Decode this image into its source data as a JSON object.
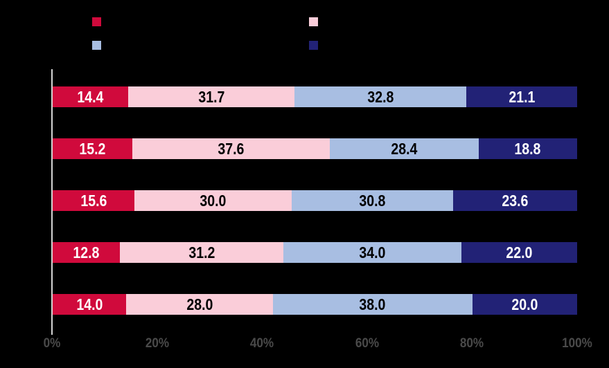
{
  "app": {
    "background_color": "#000000"
  },
  "legend": {
    "position": "top",
    "swatch_series_order": [
      "crimson",
      "pink",
      "light-blue",
      "navy"
    ]
  },
  "axis": {
    "line_color": "#D4D4D4",
    "tick_label_color": "#4A4A4A"
  },
  "chart_data": {
    "type": "bar",
    "orientation": "horizontal",
    "stacked": true,
    "unit": "percent",
    "grid": false,
    "legend_position": "top",
    "x_ticks": [
      "0%",
      "20%",
      "40%",
      "60%",
      "80%",
      "100%"
    ],
    "xlim": [
      0,
      100
    ],
    "rows": 5,
    "series": [
      {
        "name": "crimson",
        "color": "#D00A3C",
        "label_color": "#FFFFFF",
        "values": [
          14.4,
          15.2,
          15.6,
          12.8,
          14.0
        ]
      },
      {
        "name": "pink",
        "color": "#FACDD9",
        "label_color": "#000000",
        "values": [
          31.7,
          37.6,
          30.0,
          31.2,
          28.0
        ]
      },
      {
        "name": "light-blue",
        "color": "#A8BEE2",
        "label_color": "#000000",
        "values": [
          32.8,
          28.4,
          30.8,
          34.0,
          38.0
        ]
      },
      {
        "name": "navy",
        "color": "#222276",
        "label_color": "#FFFFFF",
        "values": [
          21.1,
          18.8,
          23.6,
          22.0,
          20.0
        ]
      }
    ],
    "value_label_decimals": 1
  }
}
